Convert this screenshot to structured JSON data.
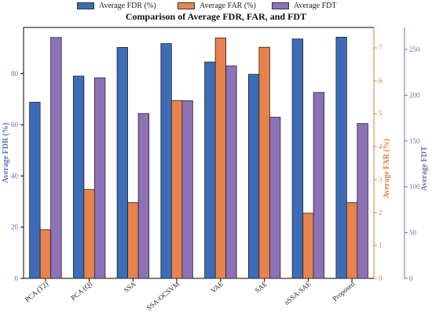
{
  "chart_data": {
    "type": "bar",
    "title": "Comparison of Average FDR, FAR, and FDT",
    "categories": [
      "PCA (T2)",
      "PCA (Q)",
      "SSA",
      "SSA-OCSVM",
      "VAE",
      "SAE",
      "nSSA-SAE",
      "Proposed"
    ],
    "series": [
      {
        "name": "Average FDR (%)",
        "axis": "left",
        "color": "#3a6db5",
        "values": [
          68.8,
          79.0,
          90.2,
          91.7,
          84.5,
          79.7,
          93.5,
          94.2
        ]
      },
      {
        "name": "Average FAR (%)",
        "axis": "right1",
        "color": "#e8834f",
        "values": [
          1.48,
          2.7,
          2.3,
          5.4,
          7.3,
          7.02,
          1.98,
          2.3
        ]
      },
      {
        "name": "Average FDT",
        "axis": "right2",
        "color": "#8e72b8",
        "values": [
          263,
          219,
          180,
          194,
          232,
          176,
          203,
          169
        ]
      }
    ],
    "axes": {
      "left": {
        "label": "Average FDR (%)",
        "min": 0,
        "max": 98,
        "ticks": [
          0,
          20,
          40,
          60,
          80
        ],
        "color": "#5b6fb5"
      },
      "right1": {
        "label": "Average FAR (%)",
        "min": 0,
        "max": 7.62,
        "ticks": [
          0,
          1,
          2,
          3,
          4,
          5,
          6,
          7
        ],
        "color": "#e07b3e"
      },
      "right2": {
        "label": "Average FDT",
        "min": 0,
        "max": 274,
        "ticks": [
          0,
          50,
          100,
          150,
          200,
          250
        ],
        "color": "#7d68b0"
      }
    },
    "grid": false,
    "legend_position": "top-center"
  }
}
